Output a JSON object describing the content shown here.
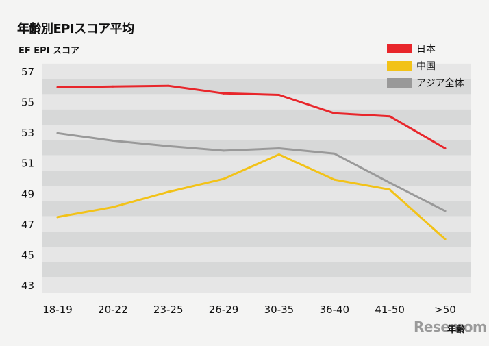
{
  "chart_title": "年齢別EPIスコア平均",
  "watermark": "Resemom",
  "watermark_overlay": "年齢",
  "chart_data": {
    "type": "line",
    "title": "年齢別EPIスコア平均",
    "ylabel": "EF EPI スコア",
    "xlabel": "年齢",
    "categories": [
      "18-19",
      "20-22",
      "23-25",
      "26-29",
      "30-35",
      "36-40",
      "41-50",
      ">50"
    ],
    "y_ticks": [
      57,
      55,
      53,
      51,
      49,
      47,
      45,
      43
    ],
    "ylim": [
      42,
      58
    ],
    "grid": "alternating horizontal bands",
    "legend_position": "top-right",
    "series": [
      {
        "name": "日本",
        "color": "#e8262b",
        "values": [
          55.95,
          56.0,
          56.05,
          55.55,
          55.45,
          54.25,
          54.05,
          51.95
        ]
      },
      {
        "name": "中国",
        "color": "#f2c218",
        "values": [
          47.45,
          48.1,
          49.1,
          49.95,
          51.55,
          49.9,
          49.25,
          46.0
        ]
      },
      {
        "name": "アジア全体",
        "color": "#999999",
        "values": [
          52.95,
          52.45,
          52.1,
          51.8,
          51.95,
          51.6,
          49.7,
          47.85
        ]
      }
    ]
  }
}
